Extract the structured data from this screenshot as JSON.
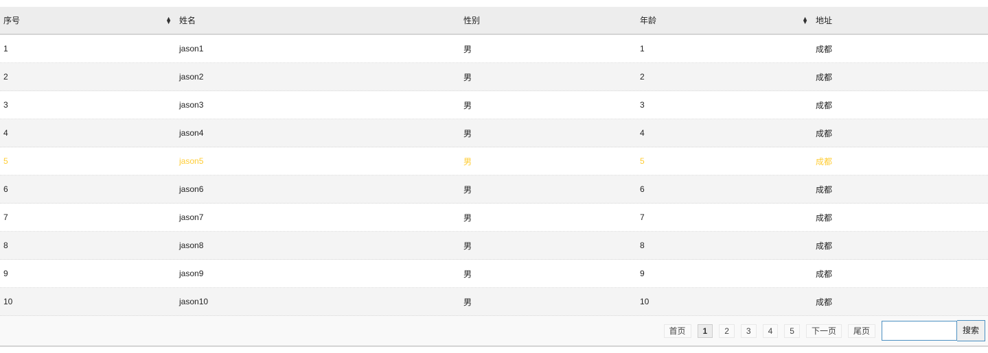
{
  "columns": [
    "序号",
    "姓名",
    "性别",
    "年龄",
    "地址"
  ],
  "sortable": [
    true,
    false,
    false,
    true,
    false
  ],
  "highlight_color": "#ffcc33",
  "rows": [
    [
      "1",
      "jason1",
      "男",
      "1",
      "成都"
    ],
    [
      "2",
      "jason2",
      "男",
      "2",
      "成都"
    ],
    [
      "3",
      "jason3",
      "男",
      "3",
      "成都"
    ],
    [
      "4",
      "jason4",
      "男",
      "4",
      "成都"
    ],
    [
      "5",
      "jason5",
      "男",
      "5",
      "成都"
    ],
    [
      "6",
      "jason6",
      "男",
      "6",
      "成都"
    ],
    [
      "7",
      "jason7",
      "男",
      "7",
      "成都"
    ],
    [
      "8",
      "jason8",
      "男",
      "8",
      "成都"
    ],
    [
      "9",
      "jason9",
      "男",
      "9",
      "成都"
    ],
    [
      "10",
      "jason10",
      "男",
      "10",
      "成都"
    ]
  ],
  "highlighted_row": 5,
  "pager": {
    "first": "首页",
    "pages": [
      "1",
      "2",
      "3",
      "4",
      "5"
    ],
    "current": "1",
    "next": "下一页",
    "last": "尾页",
    "search_value": "",
    "search_button": "搜索"
  }
}
